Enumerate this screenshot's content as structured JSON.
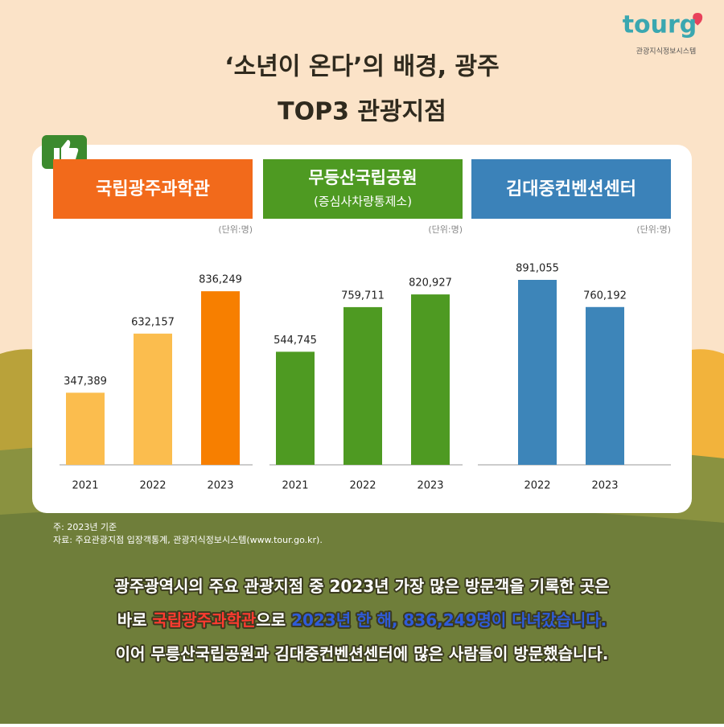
{
  "logo": {
    "name": "tourg",
    "caption": "관광지식정보시스템"
  },
  "title": [
    "‘소년이 온다’의 배경, 광주",
    "TOP3 관광지점"
  ],
  "chart_data": [
    {
      "type": "bar",
      "title": "국립광주과학관",
      "unit": "(단위:명)",
      "categories": [
        "2021",
        "2022",
        "2023"
      ],
      "values": [
        347389,
        632157,
        836249
      ],
      "value_labels": [
        "347,389",
        "632,157",
        "836,249"
      ],
      "colors": [
        "#fbbd4e",
        "#fbbd4e",
        "#f77f00"
      ],
      "header_color": "#f26a1b"
    },
    {
      "type": "bar",
      "title": "무등산국립공원",
      "subtitle": "(증심사차량통제소)",
      "unit": "(단위:명)",
      "categories": [
        "2021",
        "2022",
        "2023"
      ],
      "values": [
        544745,
        759711,
        820927
      ],
      "value_labels": [
        "544,745",
        "759,711",
        "820,927"
      ],
      "colors": [
        "#4e9a22",
        "#4e9a22",
        "#4e9a22"
      ],
      "header_color": "#4e9a22"
    },
    {
      "type": "bar",
      "title": "김대중컨벤션센터",
      "unit": "(단위:명)",
      "categories": [
        "2022",
        "2023"
      ],
      "values": [
        891055,
        760192
      ],
      "value_labels": [
        "891,055",
        "760,192"
      ],
      "colors": [
        "#3d85b9",
        "#3d85b9"
      ],
      "header_color": "#3b82b9"
    }
  ],
  "footnote": [
    "주: 2023년 기준",
    "자료: 주요관광지점 입장객통계, 관광지식정보시스템(www.tour.go.kr)."
  ],
  "body": [
    [
      {
        "text": "광주광역시의 주요 관광지점 중 2023년 가장 많은 방문객을 기록한 곳은",
        "color": "#ffffff"
      }
    ],
    [
      {
        "text": "바로 ",
        "color": "#ffffff"
      },
      {
        "text": "국립광주과학관",
        "color": "#ff3b30"
      },
      {
        "text": "으로 ",
        "color": "#ffffff"
      },
      {
        "text": "2023년 한 해, 836,249명이 다녀갔습니다.",
        "color": "#2f5bd8"
      }
    ],
    [
      {
        "text": "이어 무릉산국립공원과 김대중컨벤션센터에 많은 사람들이 방문했습니다.",
        "color": "#ffffff"
      }
    ]
  ]
}
